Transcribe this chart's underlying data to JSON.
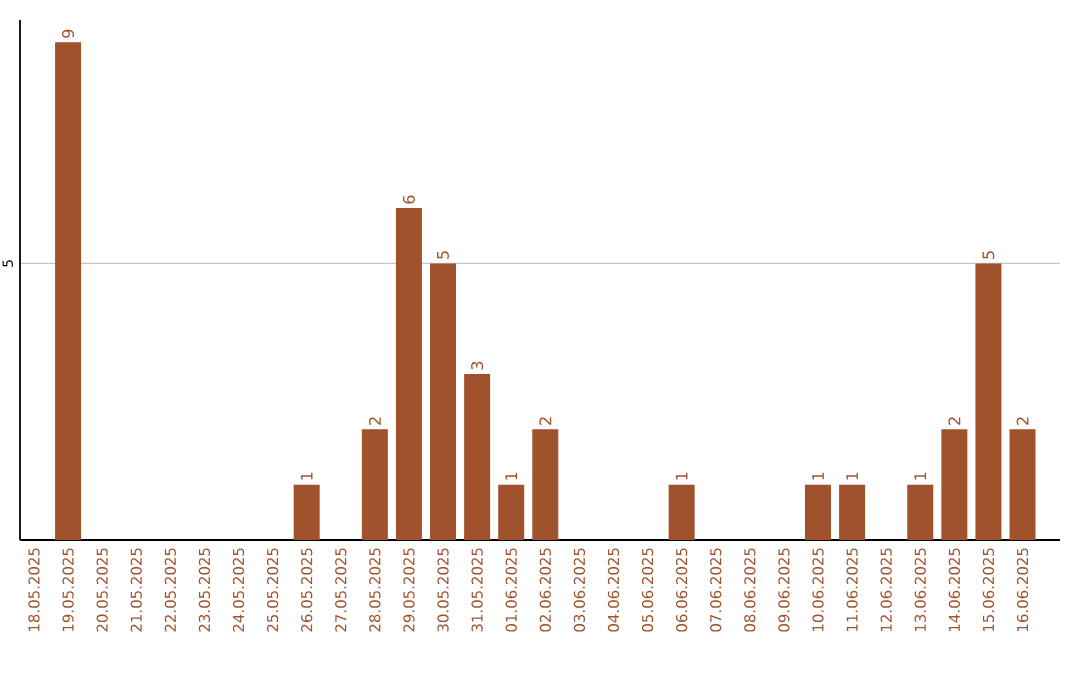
{
  "chart_data": {
    "type": "bar",
    "categories": [
      "18.05.2025",
      "19.05.2025",
      "20.05.2025",
      "21.05.2025",
      "22.05.2025",
      "23.05.2025",
      "24.05.2025",
      "25.05.2025",
      "26.05.2025",
      "27.05.2025",
      "28.05.2025",
      "29.05.2025",
      "30.05.2025",
      "31.05.2025",
      "01.06.2025",
      "02.06.2025",
      "03.06.2025",
      "04.06.2025",
      "05.06.2025",
      "06.06.2025",
      "07.06.2025",
      "08.06.2025",
      "09.06.2025",
      "10.06.2025",
      "11.06.2025",
      "12.06.2025",
      "13.06.2025",
      "14.06.2025",
      "15.06.2025",
      "16.06.2025"
    ],
    "values": [
      0,
      9,
      0,
      0,
      0,
      0,
      0,
      0,
      1,
      0,
      2,
      6,
      5,
      3,
      1,
      2,
      0,
      0,
      0,
      1,
      0,
      0,
      0,
      1,
      1,
      0,
      1,
      2,
      5,
      2
    ],
    "color": "#a0522d",
    "value_labels": [
      null,
      "9",
      null,
      null,
      null,
      null,
      null,
      null,
      "1",
      null,
      "2",
      "6",
      "5",
      "3",
      "1",
      "2",
      null,
      null,
      null,
      "1",
      null,
      null,
      null,
      "1",
      "1",
      null,
      "1",
      "2",
      "5",
      "2"
    ],
    "ylim": [
      0,
      9.4
    ],
    "yticks": [
      5
    ],
    "grid": "y"
  }
}
